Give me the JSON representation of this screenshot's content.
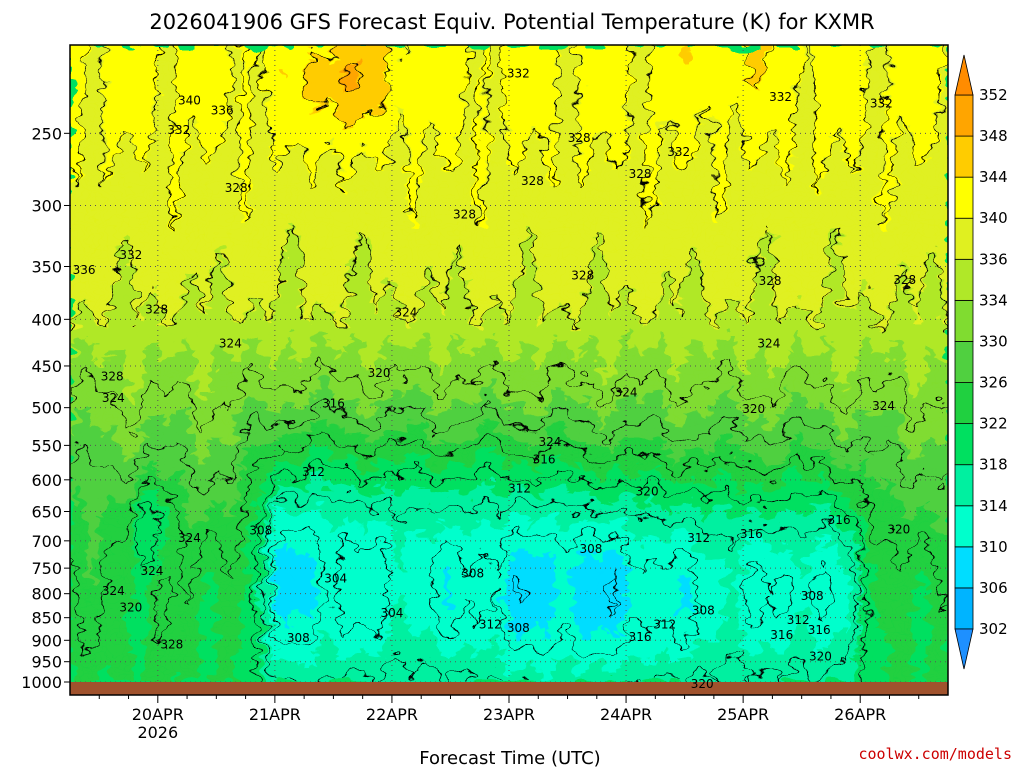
{
  "chart_data": {
    "type": "heatmap",
    "title": "2026041906 GFS Forecast Equiv. Potential Temperature (K) for KXMR",
    "xlabel": "Forecast Time (UTC)",
    "ylabel": "",
    "credit": "coolwx.com/models",
    "x_ticks": [
      "20APR",
      "21APR",
      "22APR",
      "23APR",
      "24APR",
      "25APR",
      "26APR"
    ],
    "x_year": "2026",
    "x_range_days": [
      19.25,
      26.75
    ],
    "y_scale": "log",
    "y_range_hpa": [
      1000,
      200
    ],
    "y_ticks": [
      250,
      300,
      350,
      400,
      450,
      500,
      550,
      600,
      650,
      700,
      750,
      800,
      850,
      900,
      950,
      1000
    ],
    "colorbar": {
      "levels": [
        302,
        306,
        310,
        314,
        318,
        322,
        326,
        330,
        334,
        336,
        340,
        344,
        348,
        352
      ],
      "colors": [
        "#1e90ff",
        "#00b4ff",
        "#00ddff",
        "#00ffcc",
        "#00f0a0",
        "#00e060",
        "#20d040",
        "#50d040",
        "#80dc30",
        "#b0e828",
        "#e0f020",
        "#ffff00",
        "#ffcc00",
        "#ffa500",
        "#ff8c00"
      ],
      "under_color": "#1e90ff",
      "over_color": "#ff8c00"
    },
    "contour_labels": [
      {
        "v": "340",
        "t": 20.27,
        "p": 230
      },
      {
        "v": "336",
        "t": 20.55,
        "p": 236
      },
      {
        "v": "332",
        "t": 20.18,
        "p": 248
      },
      {
        "v": "332",
        "t": 23.08,
        "p": 215
      },
      {
        "v": "332",
        "t": 25.32,
        "p": 228
      },
      {
        "v": "332",
        "t": 26.18,
        "p": 232
      },
      {
        "v": "332",
        "t": 24.45,
        "p": 262
      },
      {
        "v": "332",
        "t": 19.77,
        "p": 340
      },
      {
        "v": "328",
        "t": 23.6,
        "p": 253
      },
      {
        "v": "328",
        "t": 24.12,
        "p": 277
      },
      {
        "v": "328",
        "t": 23.2,
        "p": 282
      },
      {
        "v": "328",
        "t": 20.67,
        "p": 287
      },
      {
        "v": "328",
        "t": 22.62,
        "p": 307
      },
      {
        "v": "328",
        "t": 23.63,
        "p": 358
      },
      {
        "v": "328",
        "t": 25.23,
        "p": 363
      },
      {
        "v": "328",
        "t": 26.38,
        "p": 362
      },
      {
        "v": "328",
        "t": 19.99,
        "p": 390
      },
      {
        "v": "336",
        "t": 19.37,
        "p": 353
      },
      {
        "v": "324",
        "t": 22.12,
        "p": 393
      },
      {
        "v": "324",
        "t": 20.62,
        "p": 425
      },
      {
        "v": "324",
        "t": 25.22,
        "p": 425
      },
      {
        "v": "324",
        "t": 24.0,
        "p": 481
      },
      {
        "v": "324",
        "t": 26.2,
        "p": 498
      },
      {
        "v": "324",
        "t": 19.62,
        "p": 488
      },
      {
        "v": "328",
        "t": 19.61,
        "p": 462
      },
      {
        "v": "324",
        "t": 23.35,
        "p": 545
      },
      {
        "v": "324",
        "t": 20.27,
        "p": 695
      },
      {
        "v": "324",
        "t": 19.95,
        "p": 755
      },
      {
        "v": "324",
        "t": 19.62,
        "p": 795
      },
      {
        "v": "320",
        "t": 21.89,
        "p": 458
      },
      {
        "v": "320",
        "t": 25.09,
        "p": 502
      },
      {
        "v": "320",
        "t": 24.18,
        "p": 618
      },
      {
        "v": "320",
        "t": 26.33,
        "p": 680
      },
      {
        "v": "320",
        "t": 19.77,
        "p": 828
      },
      {
        "v": "320",
        "t": 25.66,
        "p": 938
      },
      {
        "v": "320",
        "t": 24.65,
        "p": 1005
      },
      {
        "v": "316",
        "t": 21.5,
        "p": 495
      },
      {
        "v": "316",
        "t": 23.3,
        "p": 570
      },
      {
        "v": "316",
        "t": 25.07,
        "p": 688
      },
      {
        "v": "316",
        "t": 25.82,
        "p": 664
      },
      {
        "v": "316",
        "t": 24.12,
        "p": 892
      },
      {
        "v": "316",
        "t": 25.33,
        "p": 888
      },
      {
        "v": "316",
        "t": 25.65,
        "p": 877
      },
      {
        "v": "312",
        "t": 21.33,
        "p": 588
      },
      {
        "v": "312",
        "t": 23.09,
        "p": 613
      },
      {
        "v": "312",
        "t": 24.62,
        "p": 695
      },
      {
        "v": "312",
        "t": 22.84,
        "p": 865
      },
      {
        "v": "312",
        "t": 24.33,
        "p": 865
      },
      {
        "v": "312",
        "t": 25.47,
        "p": 855
      },
      {
        "v": "308",
        "t": 20.88,
        "p": 682
      },
      {
        "v": "308",
        "t": 23.7,
        "p": 715
      },
      {
        "v": "308",
        "t": 22.69,
        "p": 760
      },
      {
        "v": "308",
        "t": 23.08,
        "p": 873
      },
      {
        "v": "308",
        "t": 21.2,
        "p": 895
      },
      {
        "v": "308",
        "t": 24.66,
        "p": 835
      },
      {
        "v": "308",
        "t": 25.59,
        "p": 805
      },
      {
        "v": "304",
        "t": 21.52,
        "p": 770
      },
      {
        "v": "304",
        "t": 22.0,
        "p": 840
      },
      {
        "v": "328",
        "t": 20.12,
        "p": 910
      }
    ]
  }
}
